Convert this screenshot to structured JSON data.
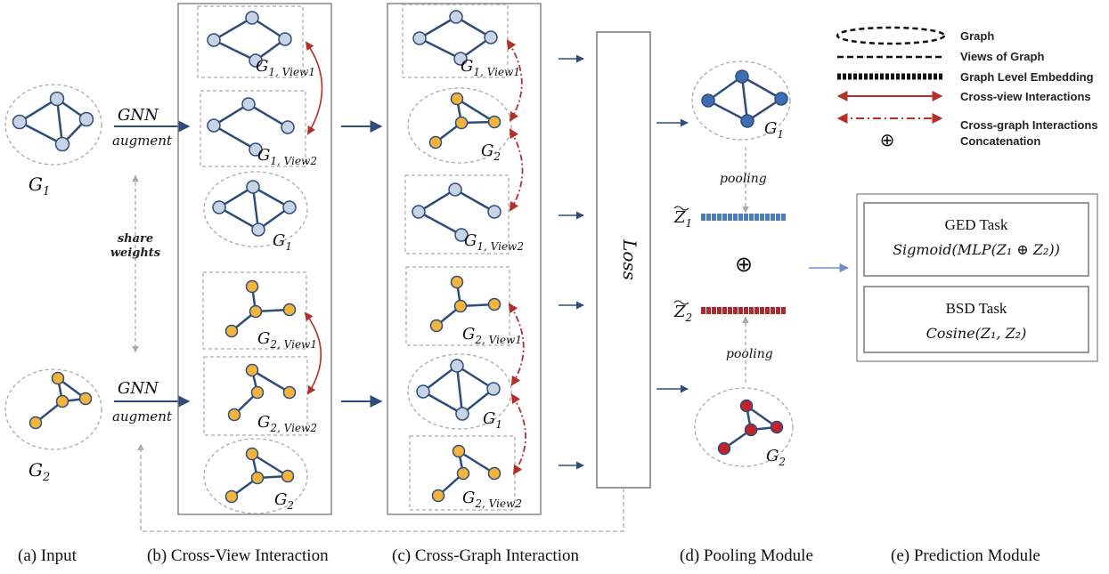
{
  "input": {
    "gnn": "GNN",
    "augment": "augment",
    "share_line1": "share",
    "share_line2": "weights",
    "g1": "G",
    "g1_sub": "1",
    "g2": "G",
    "g2_sub": "2"
  },
  "views": {
    "view1": "1, View1",
    "view2": "1, View2",
    "g2_view1": "2, View1",
    "g2_view2": "2, View2"
  },
  "loss": "Loss",
  "pooling": "pooling",
  "z1_sub": "1",
  "z2_sub": "2",
  "concat_symbol": "⊕",
  "legend": {
    "graph": "Graph",
    "views": "Views of Graph",
    "embedding": "Graph Level Embedding",
    "cross_view": "Cross-view Interactions",
    "cross_graph": "Cross-graph Interactions",
    "concat": "Concatenation"
  },
  "tasks": {
    "ged_title": "GED Task",
    "ged_formula": "Sigmoid(MLP(Z₁ ⊕ Z₂))",
    "bsd_title": "BSD Task",
    "bsd_formula": "Cosine(Z₁, Z₂)"
  },
  "captions": {
    "a": "(a) Input",
    "b": "(b) Cross-View Interaction",
    "c": "(c) Cross-Graph Interaction",
    "d": "(d) Pooling Module",
    "e": "(e) Prediction Module"
  },
  "colors": {
    "edge": "#2f4d7a",
    "node_light": "#c9d3e6",
    "node_yellow": "#f2b43a",
    "node_blue": "#3e6db5",
    "node_red": "#c0232b",
    "red_arrow": "#b5302a",
    "embed_blue": "#4a7cc0",
    "embed_red": "#b3262a"
  }
}
